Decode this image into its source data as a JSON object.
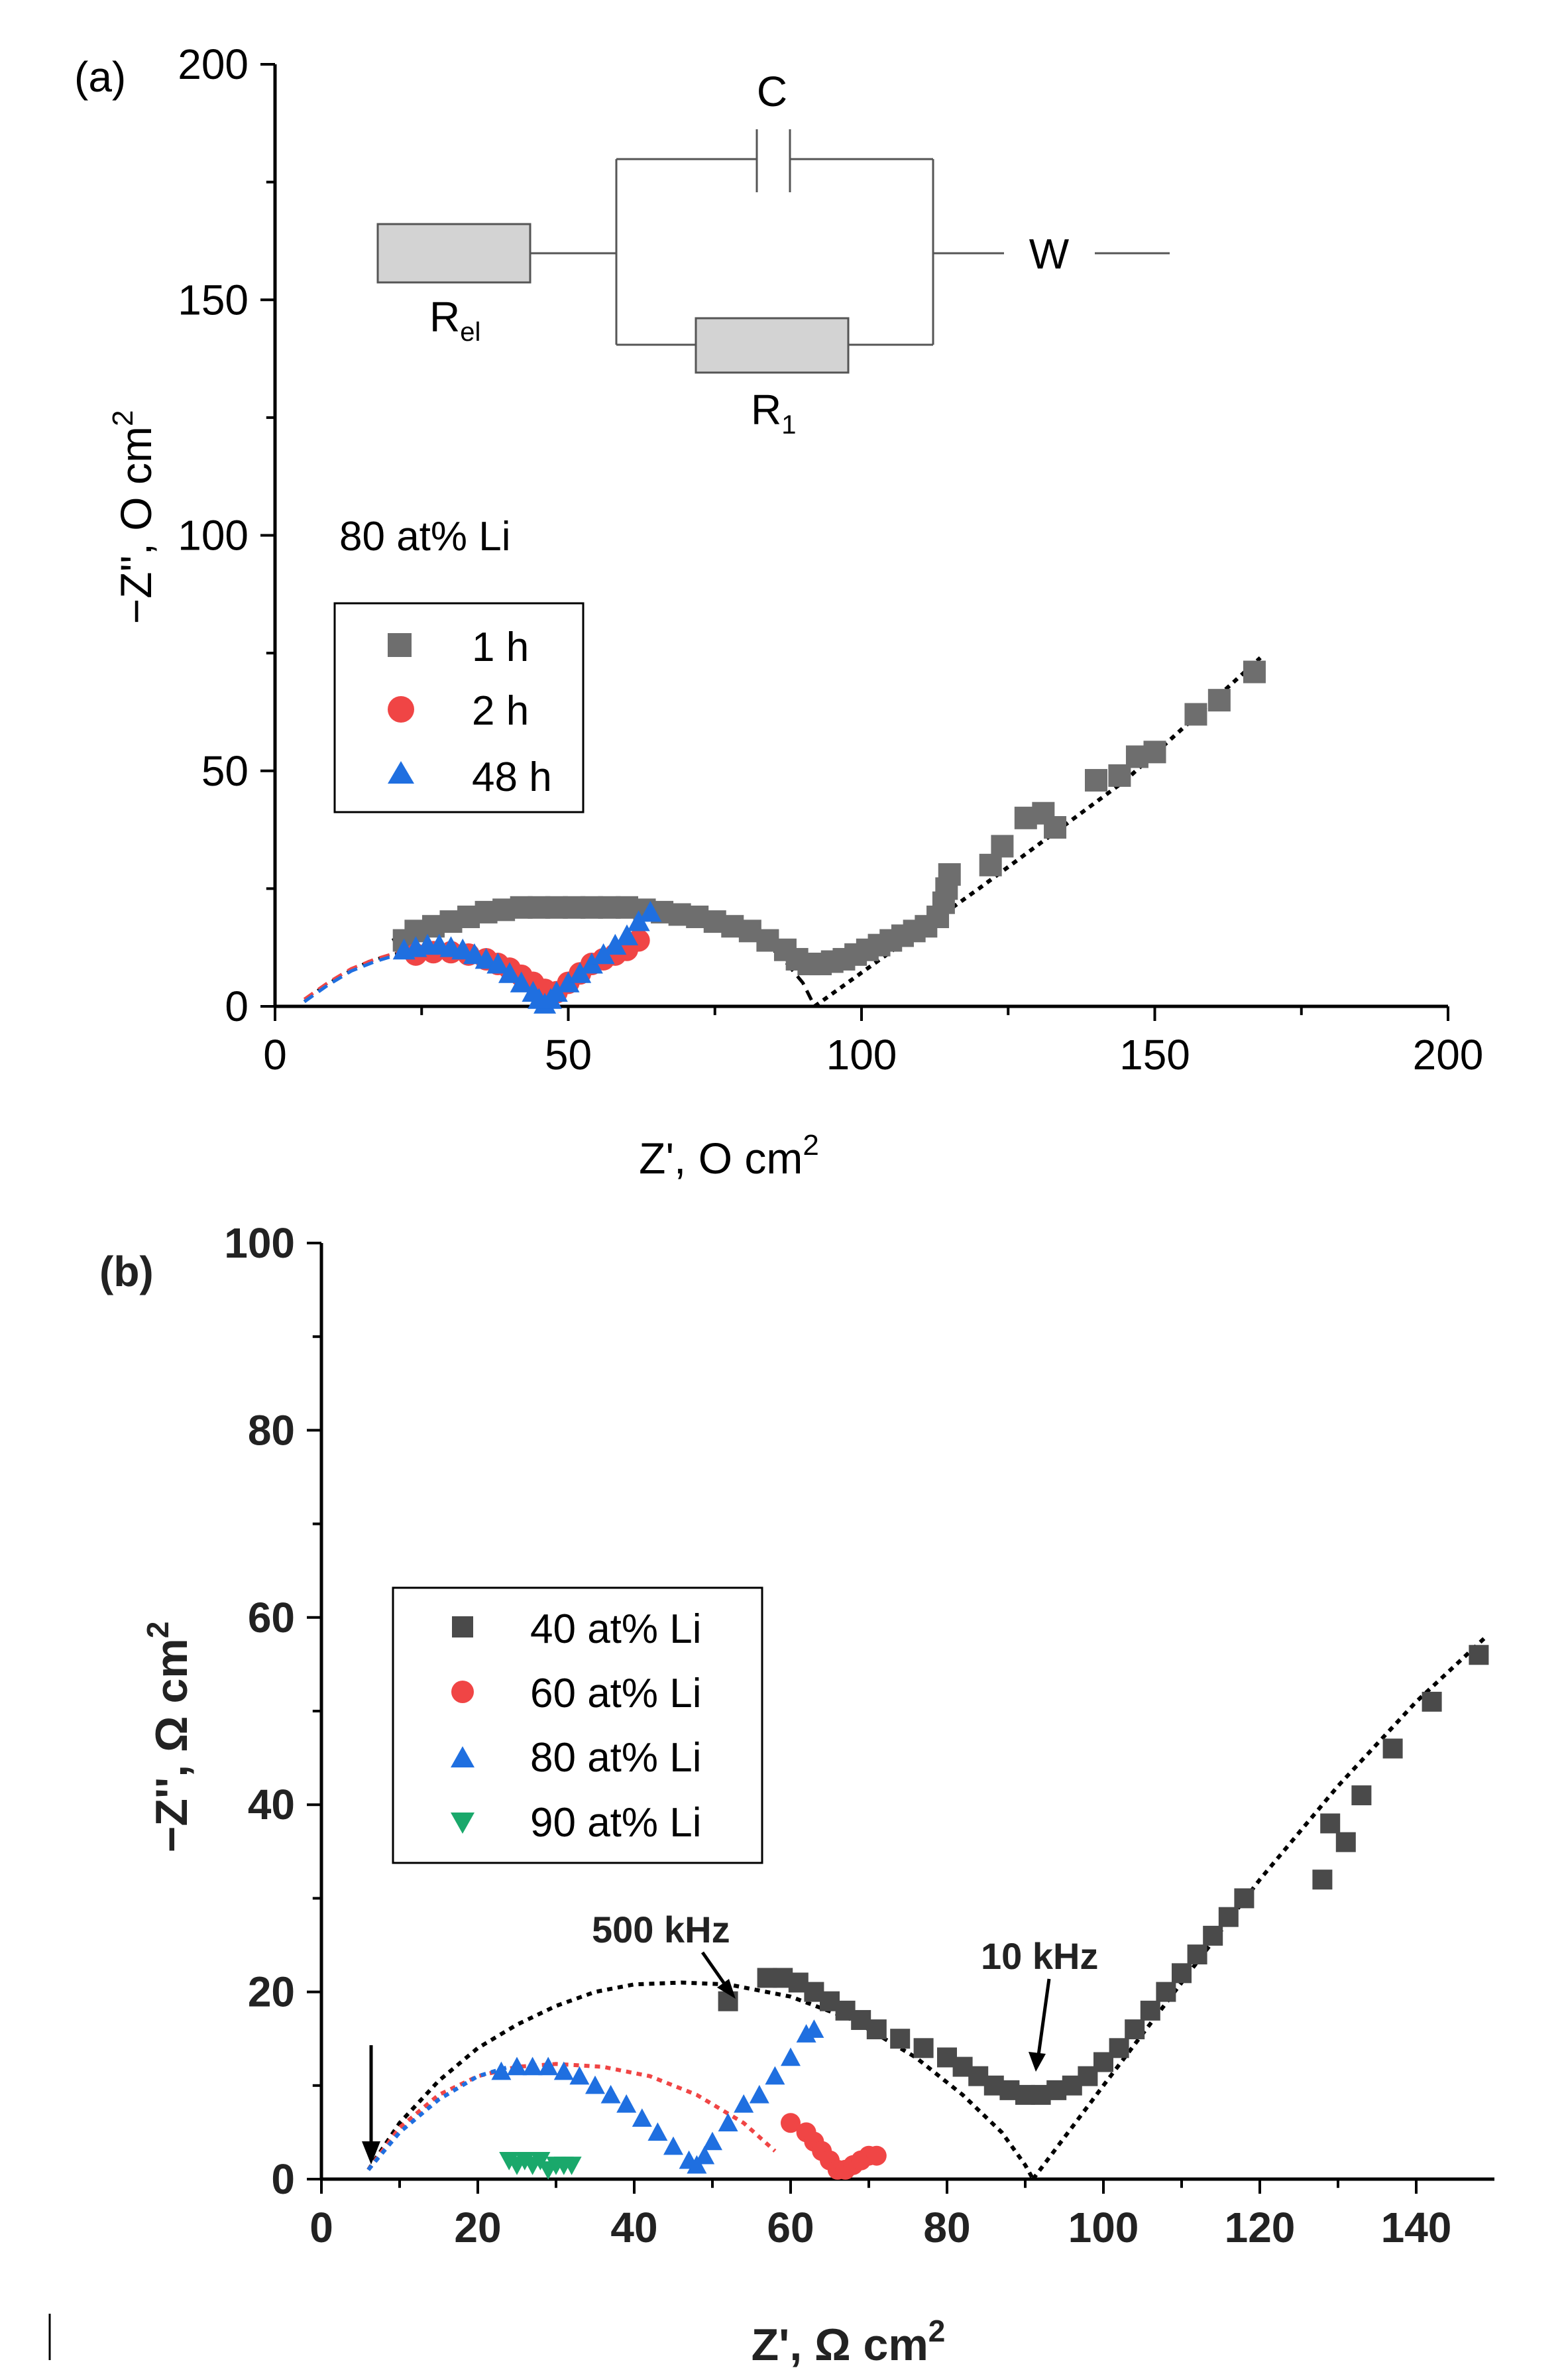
{
  "chart_data": [
    {
      "type": "scatter",
      "panel_label": "(a)",
      "xlabel": "Z', O cm",
      "xlabel_sup": "2",
      "ylabel": "−Z'', O cm",
      "ylabel_sup": "2",
      "xlim": [
        0,
        200
      ],
      "ylim": [
        0,
        200
      ],
      "xticks": [
        0,
        50,
        100,
        150,
        200
      ],
      "yticks": [
        0,
        50,
        100,
        150,
        200
      ],
      "annotation": "80 at% Li",
      "circuit": {
        "capacitor_label": "C",
        "resistor_el_label": "R",
        "resistor_el_sub": "el",
        "resistor_1_label": "R",
        "resistor_1_sub": "1",
        "warburg_label": "W"
      },
      "series": [
        {
          "name": "1 h",
          "marker": "square",
          "color": "#6e6e6e",
          "points": [
            [
              22,
              14
            ],
            [
              24,
              16
            ],
            [
              27,
              17
            ],
            [
              30,
              18
            ],
            [
              33,
              19
            ],
            [
              36,
              20
            ],
            [
              39,
              20.5
            ],
            [
              42,
              21
            ],
            [
              45,
              21
            ],
            [
              48,
              21
            ],
            [
              51,
              21
            ],
            [
              54,
              21
            ],
            [
              57,
              21
            ],
            [
              60,
              21
            ],
            [
              63,
              20.5
            ],
            [
              66,
              20
            ],
            [
              69,
              19.5
            ],
            [
              72,
              19
            ],
            [
              75,
              18
            ],
            [
              78,
              17
            ],
            [
              81,
              16
            ],
            [
              84,
              14
            ],
            [
              87,
              12
            ],
            [
              89,
              10
            ],
            [
              91,
              9
            ],
            [
              93,
              9
            ],
            [
              95,
              9.5
            ],
            [
              97,
              10
            ],
            [
              99,
              11
            ],
            [
              101,
              12
            ],
            [
              103,
              13
            ],
            [
              105,
              14
            ],
            [
              107,
              15
            ],
            [
              109,
              16
            ],
            [
              111,
              17
            ],
            [
              113,
              19
            ],
            [
              114,
              22
            ],
            [
              114.5,
              25
            ],
            [
              115,
              28
            ],
            [
              122,
              30
            ],
            [
              124,
              34
            ],
            [
              128,
              40
            ],
            [
              131,
              41
            ],
            [
              133,
              38
            ],
            [
              140,
              48
            ],
            [
              144,
              49
            ],
            [
              147,
              53
            ],
            [
              150,
              54
            ],
            [
              157,
              62
            ],
            [
              161,
              65
            ],
            [
              167,
              71
            ]
          ]
        },
        {
          "name": "2 h",
          "marker": "circle",
          "color": "#f04545",
          "points": [
            [
              24,
              11
            ],
            [
              27,
              11.5
            ],
            [
              30,
              11.5
            ],
            [
              33,
              11
            ],
            [
              36,
              10
            ],
            [
              38,
              9
            ],
            [
              40,
              8
            ],
            [
              42,
              6.5
            ],
            [
              44,
              5
            ],
            [
              46,
              3.5
            ],
            [
              48,
              3
            ],
            [
              50,
              5
            ],
            [
              52,
              7
            ],
            [
              54,
              9
            ],
            [
              56,
              10
            ],
            [
              58,
              11
            ],
            [
              60,
              12
            ],
            [
              62,
              14
            ]
          ]
        },
        {
          "name": "48 h",
          "marker": "triangle",
          "color": "#1f6fe0",
          "points": [
            [
              22,
              12
            ],
            [
              24,
              12.5
            ],
            [
              26,
              13
            ],
            [
              28,
              13
            ],
            [
              30,
              12.5
            ],
            [
              32,
              12
            ],
            [
              34,
              11
            ],
            [
              36,
              10
            ],
            [
              38,
              9
            ],
            [
              40,
              7
            ],
            [
              42,
              5
            ],
            [
              44,
              3
            ],
            [
              45,
              1.5
            ],
            [
              46,
              0.5
            ],
            [
              47,
              1.5
            ],
            [
              48,
              3
            ],
            [
              50,
              5
            ],
            [
              52,
              7
            ],
            [
              54,
              9
            ],
            [
              56,
              11
            ],
            [
              58,
              13
            ],
            [
              60,
              15
            ],
            [
              62,
              18
            ],
            [
              64,
              20
            ]
          ]
        }
      ],
      "fit_curves": [
        {
          "color": "#000000",
          "style": "dashed",
          "points": [
            [
              20,
              14
            ],
            [
              25,
              17
            ],
            [
              30,
              19
            ],
            [
              35,
              20.5
            ],
            [
              40,
              21
            ],
            [
              50,
              21.5
            ],
            [
              60,
              21
            ],
            [
              70,
              19.5
            ],
            [
              80,
              16
            ],
            [
              86,
              11
            ],
            [
              90,
              5
            ],
            [
              92,
              0
            ]
          ]
        },
        {
          "color": "#000000",
          "style": "dashed",
          "points": [
            [
              5,
              1
            ],
            [
              8,
              4
            ],
            [
              12,
              7
            ],
            [
              16,
              9.5
            ],
            [
              20,
              11
            ],
            [
              25,
              12
            ],
            [
              30,
              12.2
            ],
            [
              35,
              11.5
            ],
            [
              40,
              8
            ],
            [
              43,
              4
            ],
            [
              44,
              1
            ]
          ]
        },
        {
          "color": "#f04545",
          "style": "dashed",
          "points": [
            [
              5,
              1.5
            ],
            [
              9,
              5
            ],
            [
              13,
              8
            ],
            [
              17,
              10
            ],
            [
              21,
              11.5
            ],
            [
              26,
              12
            ],
            [
              31,
              12
            ],
            [
              36,
              11
            ],
            [
              40,
              8
            ],
            [
              43,
              4
            ]
          ]
        },
        {
          "color": "#1f6fe0",
          "style": "dashed",
          "points": [
            [
              5,
              1
            ],
            [
              9,
              4.5
            ],
            [
              13,
              7.5
            ],
            [
              17,
              9.5
            ],
            [
              21,
              11
            ]
          ]
        },
        {
          "color": "#000000",
          "style": "dotted",
          "points": [
            [
              92,
              0
            ],
            [
              120,
              25
            ],
            [
              145,
              48
            ],
            [
              168,
              74
            ]
          ]
        }
      ]
    },
    {
      "type": "scatter",
      "panel_label": "(b)",
      "xlabel": "Z', Ω cm",
      "xlabel_sup": "2",
      "ylabel": "−Z'', Ω cm",
      "ylabel_sup": "2",
      "xlim": [
        0,
        150
      ],
      "ylim": [
        0,
        100
      ],
      "xticks": [
        0,
        20,
        40,
        60,
        80,
        100,
        120,
        140
      ],
      "yticks": [
        0,
        20,
        40,
        60,
        80,
        100
      ],
      "annotations": [
        {
          "text": "500 kHz",
          "x": 52,
          "y": 19
        },
        {
          "text": "10 kHz",
          "x": 91,
          "y": 9
        }
      ],
      "series": [
        {
          "name": "40 at% Li",
          "marker": "square",
          "color": "#4a4a4a",
          "points": [
            [
              52,
              19
            ],
            [
              57,
              21.5
            ],
            [
              59,
              21.5
            ],
            [
              61,
              21
            ],
            [
              63,
              20
            ],
            [
              65,
              19
            ],
            [
              67,
              18
            ],
            [
              69,
              17
            ],
            [
              71,
              16
            ],
            [
              74,
              15
            ],
            [
              77,
              14
            ],
            [
              80,
              13
            ],
            [
              82,
              12
            ],
            [
              84,
              11
            ],
            [
              86,
              10
            ],
            [
              88,
              9.5
            ],
            [
              90,
              9
            ],
            [
              92,
              9
            ],
            [
              94,
              9.5
            ],
            [
              96,
              10
            ],
            [
              98,
              11
            ],
            [
              100,
              12.5
            ],
            [
              102,
              14
            ],
            [
              104,
              16
            ],
            [
              106,
              18
            ],
            [
              108,
              20
            ],
            [
              110,
              22
            ],
            [
              112,
              24
            ],
            [
              114,
              26
            ],
            [
              116,
              28
            ],
            [
              118,
              30
            ],
            [
              128,
              32
            ],
            [
              129,
              38
            ],
            [
              131,
              36
            ],
            [
              133,
              41
            ],
            [
              137,
              46
            ],
            [
              142,
              51
            ],
            [
              148,
              56
            ]
          ]
        },
        {
          "name": "60 at% Li",
          "marker": "circle",
          "color": "#f04545",
          "points": [
            [
              60,
              6
            ],
            [
              62,
              5
            ],
            [
              63,
              4
            ],
            [
              64,
              3
            ],
            [
              65,
              2
            ],
            [
              66,
              1
            ],
            [
              67,
              1
            ],
            [
              68,
              1.5
            ],
            [
              69,
              2
            ],
            [
              70,
              2.5
            ],
            [
              71,
              2.5
            ]
          ]
        },
        {
          "name": "80 at% Li",
          "marker": "triangle",
          "color": "#1f6fe0",
          "points": [
            [
              23,
              11.5
            ],
            [
              25,
              12
            ],
            [
              27,
              12
            ],
            [
              29,
              12
            ],
            [
              31,
              11.5
            ],
            [
              33,
              11
            ],
            [
              35,
              10
            ],
            [
              37,
              9
            ],
            [
              39,
              8
            ],
            [
              41,
              6.5
            ],
            [
              43,
              5
            ],
            [
              45,
              3.5
            ],
            [
              47,
              2
            ],
            [
              48,
              1.5
            ],
            [
              49,
              2.5
            ],
            [
              50,
              4
            ],
            [
              52,
              6
            ],
            [
              54,
              8
            ],
            [
              56,
              9
            ],
            [
              58,
              11
            ],
            [
              60,
              13
            ],
            [
              62,
              15.5
            ],
            [
              63,
              16
            ]
          ]
        },
        {
          "name": "90 at% Li",
          "marker": "triangle-down",
          "color": "#1aa86b",
          "points": [
            [
              24,
              2
            ],
            [
              25,
              1.5
            ],
            [
              26,
              2
            ],
            [
              27,
              1.5
            ],
            [
              28,
              2
            ],
            [
              29,
              1
            ],
            [
              30,
              1.5
            ],
            [
              31,
              1.5
            ],
            [
              32,
              1.5
            ]
          ]
        }
      ],
      "fit_curves": [
        {
          "color": "#000000",
          "style": "dotted",
          "points": [
            [
              6,
              1
            ],
            [
              10,
              6
            ],
            [
              15,
              10.5
            ],
            [
              20,
              14
            ],
            [
              25,
              16.5
            ],
            [
              30,
              18.5
            ],
            [
              35,
              20
            ],
            [
              40,
              20.8
            ],
            [
              46,
              21
            ],
            [
              52,
              20.8
            ],
            [
              60,
              19.5
            ],
            [
              68,
              17
            ],
            [
              76,
              13
            ],
            [
              82,
              9
            ],
            [
              87,
              5
            ],
            [
              90,
              1.5
            ],
            [
              91,
              0
            ]
          ]
        },
        {
          "color": "#f04545",
          "style": "dotted",
          "points": [
            [
              6,
              1
            ],
            [
              10,
              5.5
            ],
            [
              15,
              9
            ],
            [
              20,
              11
            ],
            [
              25,
              12
            ],
            [
              30,
              12.3
            ],
            [
              36,
              12
            ],
            [
              42,
              11
            ],
            [
              48,
              9
            ],
            [
              54,
              6
            ],
            [
              58,
              3
            ]
          ]
        },
        {
          "color": "#1f6fe0",
          "style": "dotted",
          "points": [
            [
              6,
              1
            ],
            [
              10,
              5
            ],
            [
              15,
              8.5
            ],
            [
              20,
              11
            ],
            [
              24,
              12
            ]
          ]
        },
        {
          "color": "#000000",
          "style": "dotted",
          "points": [
            [
              91,
              0
            ],
            [
              100,
              10
            ],
            [
              110,
              21
            ],
            [
              120,
              32
            ],
            [
              130,
              42
            ],
            [
              140,
              51
            ],
            [
              149,
              58
            ]
          ]
        }
      ]
    }
  ]
}
